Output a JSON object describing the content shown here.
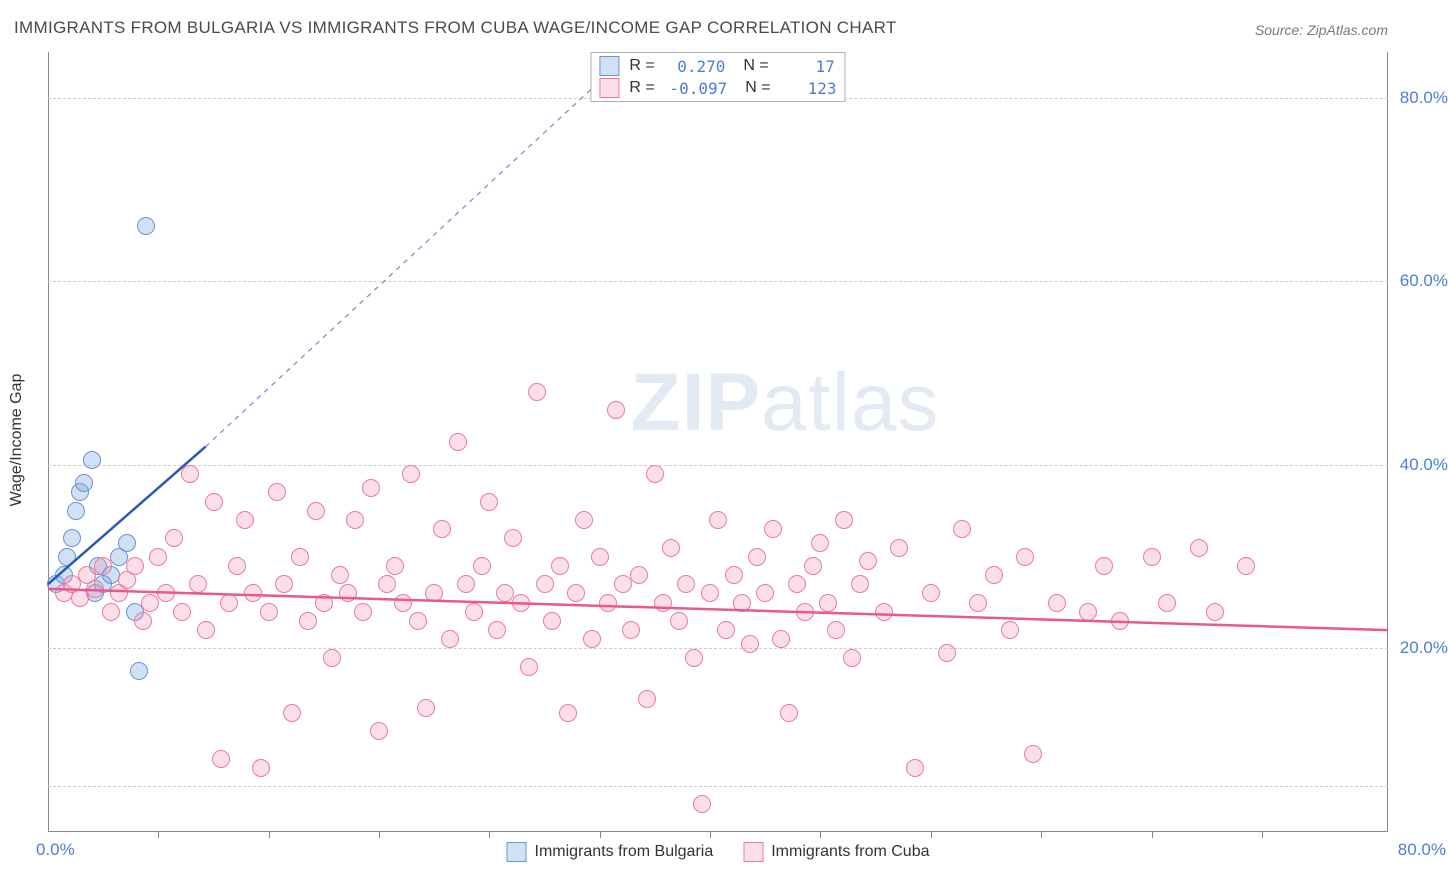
{
  "title": "IMMIGRANTS FROM BULGARIA VS IMMIGRANTS FROM CUBA WAGE/INCOME GAP CORRELATION CHART",
  "source": "Source: ZipAtlas.com",
  "y_axis_label": "Wage/Income Gap",
  "watermark_bold": "ZIP",
  "watermark_light": "atlas",
  "chart": {
    "type": "scatter",
    "xlim": [
      0,
      85
    ],
    "ylim": [
      0,
      85
    ],
    "x_tick_left": "0.0%",
    "x_tick_right": "80.0%",
    "y_ticks": [
      {
        "v": 20,
        "label": "20.0%"
      },
      {
        "v": 40,
        "label": "40.0%"
      },
      {
        "v": 60,
        "label": "60.0%"
      },
      {
        "v": 80,
        "label": "80.0%"
      }
    ],
    "x_tick_marks": [
      7,
      14,
      21,
      28,
      35,
      42,
      49,
      56,
      63,
      70,
      77
    ],
    "grid_h": [
      5,
      20,
      40,
      60,
      80
    ],
    "background_color": "#ffffff",
    "grid_color": "#cccccc",
    "axis_label_color": "#4a7fd6",
    "point_radius": 9,
    "series": [
      {
        "name": "Immigrants from Bulgaria",
        "fill": "rgba(120, 165, 225, 0.35)",
        "stroke": "#6a95d0",
        "trend": {
          "x1": 0,
          "y1": 27,
          "x2": 10,
          "y2": 42,
          "color": "#2a5ab0",
          "width": 2.5,
          "dash": "none"
        },
        "extrap": {
          "x1": 10,
          "y1": 42,
          "x2": 37,
          "y2": 85,
          "color": "#6a8fc8",
          "width": 1.2,
          "dash": "5,5"
        },
        "points": [
          [
            0.5,
            27
          ],
          [
            1,
            28
          ],
          [
            1.2,
            30
          ],
          [
            1.5,
            32
          ],
          [
            1.8,
            35
          ],
          [
            2,
            37
          ],
          [
            2.3,
            38
          ],
          [
            2.8,
            40.5
          ],
          [
            3,
            26
          ],
          [
            3.2,
            29
          ],
          [
            3.5,
            27
          ],
          [
            4,
            28
          ],
          [
            4.5,
            30
          ],
          [
            5,
            31.5
          ],
          [
            5.5,
            24
          ],
          [
            5.8,
            17.5
          ],
          [
            6.2,
            66
          ]
        ]
      },
      {
        "name": "Immigrants from Cuba",
        "fill": "rgba(245, 145, 175, 0.30)",
        "stroke": "#e87ca0",
        "trend": {
          "x1": 0,
          "y1": 26.5,
          "x2": 85,
          "y2": 22,
          "color": "#e85a8a",
          "width": 2.5,
          "dash": "none"
        },
        "points": [
          [
            1,
            26
          ],
          [
            1.5,
            27
          ],
          [
            2,
            25.5
          ],
          [
            2.5,
            28
          ],
          [
            3,
            26.5
          ],
          [
            3.5,
            29
          ],
          [
            4,
            24
          ],
          [
            4.5,
            26
          ],
          [
            5,
            27.5
          ],
          [
            5.5,
            29
          ],
          [
            6,
            23
          ],
          [
            6.5,
            25
          ],
          [
            7,
            30
          ],
          [
            7.5,
            26
          ],
          [
            8,
            32
          ],
          [
            8.5,
            24
          ],
          [
            9,
            39
          ],
          [
            9.5,
            27
          ],
          [
            10,
            22
          ],
          [
            10.5,
            36
          ],
          [
            11,
            8
          ],
          [
            11.5,
            25
          ],
          [
            12,
            29
          ],
          [
            12.5,
            34
          ],
          [
            13,
            26
          ],
          [
            13.5,
            7
          ],
          [
            14,
            24
          ],
          [
            14.5,
            37
          ],
          [
            15,
            27
          ],
          [
            15.5,
            13
          ],
          [
            16,
            30
          ],
          [
            16.5,
            23
          ],
          [
            17,
            35
          ],
          [
            17.5,
            25
          ],
          [
            18,
            19
          ],
          [
            18.5,
            28
          ],
          [
            19,
            26
          ],
          [
            19.5,
            34
          ],
          [
            20,
            24
          ],
          [
            20.5,
            37.5
          ],
          [
            21,
            11
          ],
          [
            21.5,
            27
          ],
          [
            22,
            29
          ],
          [
            22.5,
            25
          ],
          [
            23,
            39
          ],
          [
            23.5,
            23
          ],
          [
            24,
            13.5
          ],
          [
            24.5,
            26
          ],
          [
            25,
            33
          ],
          [
            25.5,
            21
          ],
          [
            26,
            42.5
          ],
          [
            26.5,
            27
          ],
          [
            27,
            24
          ],
          [
            27.5,
            29
          ],
          [
            28,
            36
          ],
          [
            28.5,
            22
          ],
          [
            29,
            26
          ],
          [
            29.5,
            32
          ],
          [
            30,
            25
          ],
          [
            30.5,
            18
          ],
          [
            31,
            48
          ],
          [
            31.5,
            27
          ],
          [
            32,
            23
          ],
          [
            32.5,
            29
          ],
          [
            33,
            13
          ],
          [
            33.5,
            26
          ],
          [
            34,
            34
          ],
          [
            34.5,
            21
          ],
          [
            35,
            30
          ],
          [
            35.5,
            25
          ],
          [
            36,
            46
          ],
          [
            36.5,
            27
          ],
          [
            37,
            22
          ],
          [
            37.5,
            28
          ],
          [
            38,
            14.5
          ],
          [
            38.5,
            39
          ],
          [
            39,
            25
          ],
          [
            39.5,
            31
          ],
          [
            40,
            23
          ],
          [
            40.5,
            27
          ],
          [
            41,
            19
          ],
          [
            41.5,
            3
          ],
          [
            42,
            26
          ],
          [
            42.5,
            34
          ],
          [
            43,
            22
          ],
          [
            43.5,
            28
          ],
          [
            44,
            25
          ],
          [
            44.5,
            20.5
          ],
          [
            45,
            30
          ],
          [
            45.5,
            26
          ],
          [
            46,
            33
          ],
          [
            46.5,
            21
          ],
          [
            47,
            13
          ],
          [
            47.5,
            27
          ],
          [
            48,
            24
          ],
          [
            48.5,
            29
          ],
          [
            49,
            31.5
          ],
          [
            49.5,
            25
          ],
          [
            50,
            22
          ],
          [
            50.5,
            34
          ],
          [
            51,
            19
          ],
          [
            51.5,
            27
          ],
          [
            52,
            29.5
          ],
          [
            53,
            24
          ],
          [
            54,
            31
          ],
          [
            55,
            7
          ],
          [
            56,
            26
          ],
          [
            57,
            19.5
          ],
          [
            58,
            33
          ],
          [
            59,
            25
          ],
          [
            60,
            28
          ],
          [
            61,
            22
          ],
          [
            62,
            30
          ],
          [
            62.5,
            8.5
          ],
          [
            64,
            25
          ],
          [
            66,
            24
          ],
          [
            67,
            29
          ],
          [
            68,
            23
          ],
          [
            70,
            30
          ],
          [
            71,
            25
          ],
          [
            73,
            31
          ],
          [
            74,
            24
          ],
          [
            76,
            29
          ]
        ]
      }
    ]
  },
  "legend_top": [
    {
      "swatch_fill": "rgba(120,165,225,0.35)",
      "swatch_border": "#6a95d0",
      "r_label": "R =",
      "r_val": "0.270",
      "n_label": "N =",
      "n_val": "17"
    },
    {
      "swatch_fill": "rgba(245,145,175,0.30)",
      "swatch_border": "#e87ca0",
      "r_label": "R =",
      "r_val": "-0.097",
      "n_label": "N =",
      "n_val": "123"
    }
  ],
  "legend_bottom": [
    {
      "swatch_fill": "rgba(120,165,225,0.35)",
      "swatch_border": "#6a95d0",
      "label": "Immigrants from Bulgaria"
    },
    {
      "swatch_fill": "rgba(245,145,175,0.30)",
      "swatch_border": "#e87ca0",
      "label": "Immigrants from Cuba"
    }
  ]
}
